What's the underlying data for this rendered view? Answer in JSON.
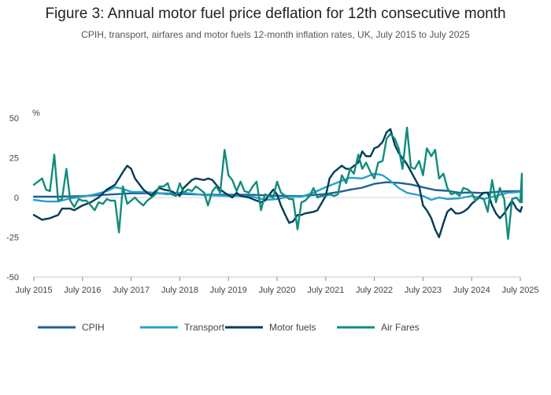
{
  "chart_data": {
    "type": "line",
    "title": "Figure 3: Annual motor fuel price deflation for 12th consecutive month",
    "subtitle": "CPIH, transport, airfares and motor fuels 12-month inflation rates, UK, July 2015 to July 2025",
    "ylabel": "%",
    "xlabel": "",
    "ylim": [
      -50,
      50
    ],
    "yticks": [
      "50",
      "25",
      "0",
      "-25",
      "-50"
    ],
    "ytick_values": [
      50,
      25,
      0,
      -25,
      -50
    ],
    "xlim": [
      2015.5,
      2025.5
    ],
    "xticks": [
      "July 2015",
      "July 2016",
      "July 2017",
      "July 2018",
      "July 2019",
      "July 2020",
      "July 2021",
      "July 2022",
      "July 2023",
      "July 2024",
      "July 2025"
    ],
    "xtick_values": [
      2015.5,
      2016.5,
      2017.5,
      2018.5,
      2019.5,
      2020.5,
      2021.5,
      2022.5,
      2023.5,
      2024.5,
      2025.5
    ],
    "legend_position": "bottom",
    "grid": false,
    "series": [
      {
        "name": "CPIH",
        "color": "#206095",
        "points": [
          [
            2015.5,
            0.5
          ],
          [
            2016.0,
            0.5
          ],
          [
            2016.5,
            0.9
          ],
          [
            2017.0,
            1.8
          ],
          [
            2017.5,
            2.6
          ],
          [
            2018.0,
            2.7
          ],
          [
            2018.5,
            2.3
          ],
          [
            2019.0,
            1.8
          ],
          [
            2019.5,
            1.8
          ],
          [
            2020.0,
            1.7
          ],
          [
            2020.5,
            1.1
          ],
          [
            2021.0,
            0.9
          ],
          [
            2021.5,
            2.2
          ],
          [
            2021.83,
            3.8
          ],
          [
            2022.0,
            4.9
          ],
          [
            2022.25,
            6.2
          ],
          [
            2022.5,
            8.6
          ],
          [
            2022.75,
            9.6
          ],
          [
            2023.0,
            9.2
          ],
          [
            2023.25,
            8.2
          ],
          [
            2023.5,
            6.4
          ],
          [
            2023.75,
            4.7
          ],
          [
            2024.0,
            4.2
          ],
          [
            2024.25,
            3.0
          ],
          [
            2024.5,
            3.1
          ],
          [
            2024.75,
            2.8
          ],
          [
            2025.0,
            3.5
          ],
          [
            2025.25,
            4.0
          ],
          [
            2025.5,
            4.0
          ]
        ]
      },
      {
        "name": "Transport",
        "color": "#27a0cc",
        "points": [
          [
            2015.5,
            -1.5
          ],
          [
            2015.75,
            -2.5
          ],
          [
            2016.0,
            -2.5
          ],
          [
            2016.25,
            -0.5
          ],
          [
            2016.5,
            0.5
          ],
          [
            2016.75,
            2.0
          ],
          [
            2017.0,
            4.0
          ],
          [
            2017.17,
            6.5
          ],
          [
            2017.33,
            5.5
          ],
          [
            2017.5,
            3.5
          ],
          [
            2017.75,
            3.5
          ],
          [
            2018.0,
            3.0
          ],
          [
            2018.25,
            2.0
          ],
          [
            2018.5,
            3.0
          ],
          [
            2018.75,
            2.5
          ],
          [
            2019.0,
            1.5
          ],
          [
            2019.5,
            1.0
          ],
          [
            2019.75,
            1.0
          ],
          [
            2020.0,
            0.5
          ],
          [
            2020.25,
            -1.5
          ],
          [
            2020.5,
            -1.0
          ],
          [
            2020.75,
            0.5
          ],
          [
            2021.0,
            0.5
          ],
          [
            2021.25,
            3.0
          ],
          [
            2021.5,
            6.5
          ],
          [
            2021.75,
            9.5
          ],
          [
            2022.0,
            12.5
          ],
          [
            2022.25,
            12.0
          ],
          [
            2022.5,
            15.0
          ],
          [
            2022.67,
            14.0
          ],
          [
            2022.83,
            10.5
          ],
          [
            2023.0,
            6.0
          ],
          [
            2023.17,
            3.0
          ],
          [
            2023.33,
            2.0
          ],
          [
            2023.5,
            1.0
          ],
          [
            2023.67,
            -1.5
          ],
          [
            2023.83,
            0.0
          ],
          [
            2024.0,
            -1.0
          ],
          [
            2024.25,
            -0.5
          ],
          [
            2024.5,
            1.0
          ],
          [
            2024.75,
            -1.0
          ],
          [
            2025.0,
            1.0
          ],
          [
            2025.25,
            3.0
          ],
          [
            2025.5,
            3.5
          ]
        ]
      },
      {
        "name": "Motor fuels",
        "color": "#003c57",
        "points": [
          [
            2015.5,
            -11
          ],
          [
            2015.67,
            -14
          ],
          [
            2015.83,
            -13
          ],
          [
            2016.0,
            -11
          ],
          [
            2016.08,
            -7
          ],
          [
            2016.25,
            -7
          ],
          [
            2016.33,
            -8
          ],
          [
            2016.5,
            -5
          ],
          [
            2016.67,
            -3
          ],
          [
            2016.83,
            0
          ],
          [
            2017.0,
            5
          ],
          [
            2017.17,
            8
          ],
          [
            2017.33,
            16
          ],
          [
            2017.42,
            20
          ],
          [
            2017.5,
            18
          ],
          [
            2017.58,
            12
          ],
          [
            2017.75,
            5
          ],
          [
            2017.92,
            1
          ],
          [
            2018.0,
            4
          ],
          [
            2018.08,
            6
          ],
          [
            2018.17,
            5
          ],
          [
            2018.33,
            4
          ],
          [
            2018.5,
            1
          ],
          [
            2018.58,
            6
          ],
          [
            2018.75,
            11
          ],
          [
            2018.83,
            12
          ],
          [
            2019.0,
            11
          ],
          [
            2019.08,
            12
          ],
          [
            2019.17,
            11
          ],
          [
            2019.33,
            5
          ],
          [
            2019.42,
            3
          ],
          [
            2019.58,
            0
          ],
          [
            2019.67,
            3
          ],
          [
            2019.75,
            1
          ],
          [
            2019.92,
            0
          ],
          [
            2020.0,
            -1
          ],
          [
            2020.17,
            -3
          ],
          [
            2020.25,
            -2
          ],
          [
            2020.42,
            5
          ],
          [
            2020.5,
            2
          ],
          [
            2020.58,
            -5
          ],
          [
            2020.67,
            -11
          ],
          [
            2020.75,
            -16
          ],
          [
            2020.83,
            -15
          ],
          [
            2020.92,
            -11
          ],
          [
            2021.0,
            -11
          ],
          [
            2021.08,
            -10
          ],
          [
            2021.25,
            -9
          ],
          [
            2021.33,
            -8
          ],
          [
            2021.5,
            1
          ],
          [
            2021.58,
            12
          ],
          [
            2021.67,
            16
          ],
          [
            2021.83,
            20
          ],
          [
            2021.92,
            18
          ],
          [
            2022.0,
            18
          ],
          [
            2022.17,
            22
          ],
          [
            2022.25,
            29
          ],
          [
            2022.33,
            26
          ],
          [
            2022.42,
            26
          ],
          [
            2022.5,
            31
          ],
          [
            2022.58,
            32
          ],
          [
            2022.67,
            35
          ],
          [
            2022.75,
            41
          ],
          [
            2022.83,
            43
          ],
          [
            2022.92,
            33
          ],
          [
            2023.0,
            28
          ],
          [
            2023.17,
            21
          ],
          [
            2023.33,
            12
          ],
          [
            2023.42,
            7
          ],
          [
            2023.5,
            -5
          ],
          [
            2023.58,
            -8
          ],
          [
            2023.67,
            -13
          ],
          [
            2023.75,
            -20
          ],
          [
            2023.83,
            -25
          ],
          [
            2023.92,
            -16
          ],
          [
            2024.0,
            -9
          ],
          [
            2024.08,
            -7
          ],
          [
            2024.17,
            -10
          ],
          [
            2024.25,
            -10
          ],
          [
            2024.33,
            -9
          ],
          [
            2024.42,
            -7
          ],
          [
            2024.5,
            -4
          ],
          [
            2024.58,
            -2
          ],
          [
            2024.67,
            1
          ],
          [
            2024.75,
            3
          ],
          [
            2024.83,
            3
          ],
          [
            2024.92,
            -5
          ],
          [
            2025.0,
            -10
          ],
          [
            2025.08,
            -13
          ],
          [
            2025.17,
            -10
          ],
          [
            2025.25,
            -6
          ],
          [
            2025.33,
            -2
          ],
          [
            2025.42,
            -7
          ],
          [
            2025.5,
            -9
          ],
          [
            2025.58,
            -6
          ]
        ]
      },
      {
        "name": "Air Fares",
        "color": "#118c7b",
        "points": [
          [
            2015.5,
            8
          ],
          [
            2015.67,
            12
          ],
          [
            2015.75,
            5
          ],
          [
            2015.83,
            4
          ],
          [
            2015.92,
            27
          ],
          [
            2016.0,
            -2
          ],
          [
            2016.08,
            -1
          ],
          [
            2016.17,
            18
          ],
          [
            2016.25,
            -2
          ],
          [
            2016.33,
            -6
          ],
          [
            2016.42,
            -1
          ],
          [
            2016.5,
            -2
          ],
          [
            2016.58,
            -2
          ],
          [
            2016.67,
            -5
          ],
          [
            2016.75,
            -8
          ],
          [
            2016.83,
            -3
          ],
          [
            2016.92,
            -4
          ],
          [
            2017.0,
            -1
          ],
          [
            2017.08,
            -2
          ],
          [
            2017.17,
            -2
          ],
          [
            2017.25,
            -22
          ],
          [
            2017.33,
            7
          ],
          [
            2017.42,
            -4
          ],
          [
            2017.5,
            -2
          ],
          [
            2017.58,
            0
          ],
          [
            2017.67,
            -3
          ],
          [
            2017.75,
            -5
          ],
          [
            2017.83,
            -2
          ],
          [
            2017.92,
            0
          ],
          [
            2018.0,
            2
          ],
          [
            2018.08,
            7
          ],
          [
            2018.17,
            7
          ],
          [
            2018.25,
            9
          ],
          [
            2018.33,
            2
          ],
          [
            2018.42,
            1
          ],
          [
            2018.5,
            9
          ],
          [
            2018.58,
            3
          ],
          [
            2018.67,
            5
          ],
          [
            2018.75,
            4
          ],
          [
            2018.83,
            7
          ],
          [
            2018.92,
            5
          ],
          [
            2019.0,
            3
          ],
          [
            2019.08,
            -5
          ],
          [
            2019.17,
            4
          ],
          [
            2019.25,
            7
          ],
          [
            2019.33,
            3
          ],
          [
            2019.42,
            30
          ],
          [
            2019.5,
            14
          ],
          [
            2019.58,
            11
          ],
          [
            2019.67,
            4
          ],
          [
            2019.75,
            10
          ],
          [
            2019.83,
            4
          ],
          [
            2019.92,
            3
          ],
          [
            2020.0,
            7
          ],
          [
            2020.08,
            10
          ],
          [
            2020.17,
            -8
          ],
          [
            2020.25,
            2
          ],
          [
            2020.33,
            1
          ],
          [
            2020.42,
            0
          ],
          [
            2020.5,
            10
          ],
          [
            2020.58,
            3
          ],
          [
            2020.67,
            1
          ],
          [
            2020.75,
            -1
          ],
          [
            2020.83,
            -1
          ],
          [
            2020.92,
            -20
          ],
          [
            2021.0,
            -3
          ],
          [
            2021.08,
            -2
          ],
          [
            2021.17,
            1
          ],
          [
            2021.25,
            6
          ],
          [
            2021.33,
            0
          ],
          [
            2021.42,
            1
          ],
          [
            2021.5,
            1
          ],
          [
            2021.58,
            2
          ],
          [
            2021.67,
            1
          ],
          [
            2021.75,
            2
          ],
          [
            2021.83,
            14
          ],
          [
            2021.92,
            9
          ],
          [
            2022.0,
            18
          ],
          [
            2022.08,
            15
          ],
          [
            2022.17,
            27
          ],
          [
            2022.25,
            18
          ],
          [
            2022.33,
            22
          ],
          [
            2022.42,
            16
          ],
          [
            2022.5,
            12
          ],
          [
            2022.58,
            22
          ],
          [
            2022.67,
            23
          ],
          [
            2022.75,
            37
          ],
          [
            2022.83,
            40
          ],
          [
            2022.92,
            37
          ],
          [
            2023.0,
            31
          ],
          [
            2023.08,
            18
          ],
          [
            2023.17,
            44
          ],
          [
            2023.25,
            19
          ],
          [
            2023.33,
            18
          ],
          [
            2023.42,
            23
          ],
          [
            2023.5,
            14
          ],
          [
            2023.58,
            31
          ],
          [
            2023.67,
            26
          ],
          [
            2023.75,
            30
          ],
          [
            2023.83,
            12
          ],
          [
            2023.92,
            15
          ],
          [
            2024.0,
            6
          ],
          [
            2024.08,
            2
          ],
          [
            2024.17,
            3
          ],
          [
            2024.25,
            1
          ],
          [
            2024.33,
            6
          ],
          [
            2024.42,
            5
          ],
          [
            2024.5,
            3
          ],
          [
            2024.58,
            -2
          ],
          [
            2024.67,
            0
          ],
          [
            2024.75,
            -1
          ],
          [
            2024.83,
            -9
          ],
          [
            2024.92,
            11
          ],
          [
            2025.0,
            -3
          ],
          [
            2025.08,
            6
          ],
          [
            2025.17,
            -1
          ],
          [
            2025.25,
            -26
          ],
          [
            2025.33,
            -1
          ],
          [
            2025.42,
            0
          ],
          [
            2025.5,
            -3
          ],
          [
            2025.58,
            15
          ],
          [
            2025.67,
            -3
          ],
          [
            2025.75,
            0
          ],
          [
            2025.83,
            15
          ]
        ]
      }
    ]
  }
}
